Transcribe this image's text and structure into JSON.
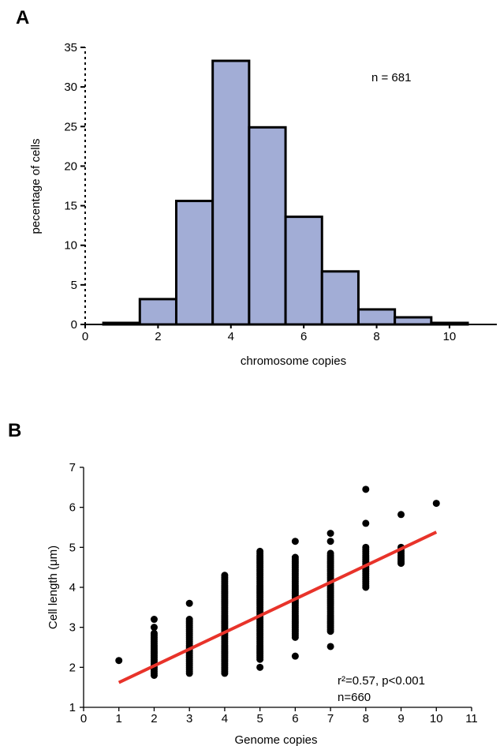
{
  "panels": {
    "a": {
      "letter": "A"
    },
    "b": {
      "letter": "B"
    }
  },
  "chart_data": [
    {
      "type": "bar",
      "panel": "A",
      "xlabel": "chromosome copies",
      "ylabel": "pecentage of cells",
      "annotation": "n = 681",
      "xlim": [
        0,
        11.3
      ],
      "ylim": [
        0,
        35
      ],
      "xticks": [
        0,
        2,
        4,
        6,
        8,
        10
      ],
      "yticks": [
        0,
        5,
        10,
        15,
        20,
        25,
        30,
        35
      ],
      "bar_color": "#a2add6",
      "bin_width": 1,
      "bins": [
        1,
        2,
        3,
        4,
        5,
        6,
        7,
        8,
        9,
        10
      ],
      "values": [
        0.2,
        3.2,
        15.6,
        33.3,
        24.9,
        13.6,
        6.7,
        1.9,
        0.9,
        0.2
      ]
    },
    {
      "type": "scatter",
      "panel": "B",
      "xlabel": "Genome copies",
      "ylabel": "Cell length (μm)",
      "annotation_line1": "r²=0.57, p<0.001",
      "annotation_line2": "n=660",
      "xlim": [
        0,
        11
      ],
      "ylim": [
        1,
        7
      ],
      "xticks": [
        0,
        1,
        2,
        3,
        4,
        5,
        6,
        7,
        8,
        9,
        10,
        11
      ],
      "yticks": [
        1,
        2,
        3,
        4,
        5,
        6,
        7
      ],
      "point_color": "#000000",
      "groups": [
        {
          "x": 1,
          "ymin": 2.17,
          "ymax": 2.17,
          "outliers": []
        },
        {
          "x": 2,
          "ymin": 1.8,
          "ymax": 2.85,
          "outliers": [
            3.0,
            3.2
          ]
        },
        {
          "x": 3,
          "ymin": 1.85,
          "ymax": 3.2,
          "outliers": [
            3.6
          ]
        },
        {
          "x": 4,
          "ymin": 1.85,
          "ymax": 4.3,
          "outliers": []
        },
        {
          "x": 5,
          "ymin": 2.2,
          "ymax": 4.9,
          "outliers": [
            2.0
          ]
        },
        {
          "x": 6,
          "ymin": 2.75,
          "ymax": 4.75,
          "outliers": [
            5.15,
            2.28
          ]
        },
        {
          "x": 7,
          "ymin": 2.9,
          "ymax": 4.85,
          "outliers": [
            5.35,
            5.15,
            2.52
          ]
        },
        {
          "x": 8,
          "ymin": 4.0,
          "ymax": 5.0,
          "outliers": [
            5.6,
            6.45
          ]
        },
        {
          "x": 9,
          "ymin": 4.6,
          "ymax": 5.0,
          "outliers": [
            5.82
          ]
        },
        {
          "x": 10,
          "ymin": 6.1,
          "ymax": 6.1,
          "outliers": []
        }
      ],
      "fit_line": {
        "x": [
          1,
          10
        ],
        "y": [
          1.62,
          5.38
        ],
        "color": "#e8332a"
      }
    }
  ]
}
